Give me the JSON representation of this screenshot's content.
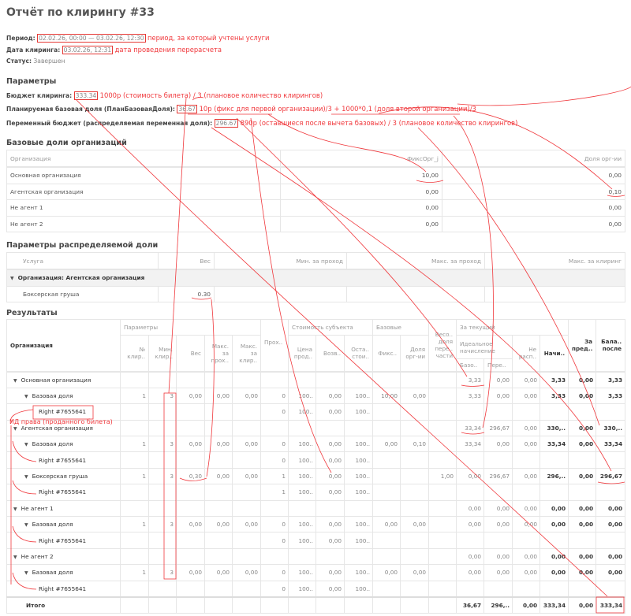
{
  "title": "Отчёт по клирингу #33",
  "info": {
    "period_label": "Период:",
    "period_value": "02.02.26, 00:00 — 03.02.26, 12:30",
    "period_note": "период, за который учтены услуги",
    "date_label": "Дата клиринга:",
    "date_value": "03.02.26, 12:31",
    "date_note": "дата проведения перерасчета",
    "status_label": "Статус:",
    "status_value": "Завершен"
  },
  "params": {
    "heading": "Параметры",
    "budget_label": "Бюджет клиринга:",
    "budget_value": "333.34",
    "budget_note": "1000р (стоимость билета) / 3 (плановое количество клирингов)",
    "base_label": "Планируемая базовая доля (ПланБазоваяДоля):",
    "base_value": "36.67",
    "base_note": "10р (фикс для первой организации)/3 + 1000*0,1 (доля второй организации)/3",
    "var_label": "Переменный бюджет (распределяемая переменная доля):",
    "var_value": "296.67",
    "var_note": "890р (оставшиеся после вычета базовых) / 3 (плановое количество клирингов)"
  },
  "base_shares": {
    "heading": "Базовые доли организаций",
    "columns": [
      "Организация",
      "ФиксОрг_j",
      "Доля орг-ии"
    ],
    "rows": [
      [
        "Основная организация",
        "10,00",
        "0,00"
      ],
      [
        "Агентская организация",
        "0,00",
        "0,10"
      ],
      [
        "Не агент 1",
        "0,00",
        "0,00"
      ],
      [
        "Не агент 2",
        "0,00",
        "0,00"
      ]
    ]
  },
  "dist_params": {
    "heading": "Параметры распределяемой доли",
    "columns": [
      "Услуга",
      "Вес",
      "Мин. за проход",
      "Макс. за проход",
      "Макс. за клиринг"
    ],
    "group_label": "Организация: Агентская организация",
    "rows": [
      [
        "Боксерская груша",
        "0.30",
        "",
        "",
        ""
      ]
    ]
  },
  "results": {
    "heading": "Результаты",
    "h_org": "Организация",
    "h_params": "Параметры",
    "h_cost": "Стоимость субъекта",
    "h_base": "Базовые",
    "h_current": "За текущий",
    "h_ideal": "Идеальное начисление",
    "cols": [
      "№ клир..",
      "Мин. клир..",
      "Вес",
      "Макс. за прох..",
      "Макс. за клир..",
      "Прох..",
      "Цена прод..",
      "Возв..",
      "Оста.. стои..",
      "Фикс..",
      "Доля орг-ии",
      "Весо.. доля пере.. части",
      "Базо..",
      "Пере..",
      "Не расп..",
      "Начи..",
      "За пред..",
      "Бала.. после"
    ],
    "rows": [
      {
        "label": "Основная организация",
        "level": 0,
        "cells": [
          "",
          "",
          "",
          "",
          "",
          "",
          "",
          "",
          "",
          "",
          "",
          "",
          "3,33",
          "0,00",
          "0,00",
          "3,33",
          "0,00",
          "3,33"
        ]
      },
      {
        "label": "Базовая доля",
        "level": 1,
        "cells": [
          "1",
          "3",
          "0,00",
          "0,00",
          "0,00",
          "0",
          "100..",
          "0,00",
          "100..",
          "10,00",
          "0,00",
          "",
          "3,33",
          "0,00",
          "0,00",
          "3,33",
          "0,00",
          "3,33"
        ]
      },
      {
        "label": "Right #7655641",
        "level": 2,
        "cells": [
          "",
          "",
          "",
          "",
          "",
          "0",
          "100..",
          "0,00",
          "100..",
          "",
          "",
          "",
          "",
          "",
          "",
          "",
          "",
          ""
        ]
      },
      {
        "label": "Агентская организация",
        "level": 0,
        "cells": [
          "",
          "",
          "",
          "",
          "",
          "",
          "",
          "",
          "",
          "",
          "",
          "",
          "33,34",
          "296,67",
          "0,00",
          "330,..",
          "0,00",
          "330,.."
        ]
      },
      {
        "label": "Базовая доля",
        "level": 1,
        "cells": [
          "1",
          "3",
          "0,00",
          "0,00",
          "0,00",
          "0",
          "100..",
          "0,00",
          "100..",
          "0,00",
          "0,10",
          "",
          "33,34",
          "0,00",
          "0,00",
          "33,34",
          "0,00",
          "33,34"
        ]
      },
      {
        "label": "Right #7655641",
        "level": 2,
        "cells": [
          "",
          "",
          "",
          "",
          "",
          "0",
          "100..",
          "0,00",
          "100..",
          "",
          "",
          "",
          "",
          "",
          "",
          "",
          "",
          ""
        ]
      },
      {
        "label": "Боксерская груша",
        "level": 1,
        "cells": [
          "1",
          "3",
          "0,30",
          "0,00",
          "0,00",
          "1",
          "100..",
          "0,00",
          "100..",
          "",
          "",
          "1,00",
          "0,00",
          "296,67",
          "0,00",
          "296,..",
          "0,00",
          "296,67"
        ]
      },
      {
        "label": "Right #7655641",
        "level": 2,
        "cells": [
          "",
          "",
          "",
          "",
          "",
          "1",
          "100..",
          "0,00",
          "100..",
          "",
          "",
          "",
          "",
          "",
          "",
          "",
          "",
          ""
        ]
      },
      {
        "label": "Не агент 1",
        "level": 0,
        "cells": [
          "",
          "",
          "",
          "",
          "",
          "",
          "",
          "",
          "",
          "",
          "",
          "",
          "0,00",
          "0,00",
          "0,00",
          "0,00",
          "0,00",
          "0,00"
        ]
      },
      {
        "label": "Базовая доля",
        "level": 1,
        "cells": [
          "1",
          "3",
          "0,00",
          "0,00",
          "0,00",
          "0",
          "100..",
          "0,00",
          "100..",
          "0,00",
          "0,00",
          "",
          "0,00",
          "0,00",
          "0,00",
          "0,00",
          "0,00",
          "0,00"
        ]
      },
      {
        "label": "Right #7655641",
        "level": 2,
        "cells": [
          "",
          "",
          "",
          "",
          "",
          "0",
          "100..",
          "0,00",
          "100..",
          "",
          "",
          "",
          "",
          "",
          "",
          "",
          "",
          ""
        ]
      },
      {
        "label": "Не агент 2",
        "level": 0,
        "cells": [
          "",
          "",
          "",
          "",
          "",
          "",
          "",
          "",
          "",
          "",
          "",
          "",
          "0,00",
          "0,00",
          "0,00",
          "0,00",
          "0,00",
          "0,00"
        ]
      },
      {
        "label": "Базовая доля",
        "level": 1,
        "cells": [
          "1",
          "3",
          "0,00",
          "0,00",
          "0,00",
          "0",
          "100..",
          "0,00",
          "100..",
          "0,00",
          "0,00",
          "",
          "0,00",
          "0,00",
          "0,00",
          "0,00",
          "0,00",
          "0,00"
        ]
      },
      {
        "label": "Right #7655641",
        "level": 2,
        "cells": [
          "",
          "",
          "",
          "",
          "",
          "0",
          "100..",
          "0,00",
          "100..",
          "",
          "",
          "",
          "",
          "",
          "",
          "",
          "",
          ""
        ]
      }
    ],
    "total": {
      "label": "Итого",
      "cells": [
        "",
        "",
        "",
        "",
        "",
        "",
        "",
        "",
        "",
        "",
        "",
        "",
        "36,67",
        "296,..",
        "0,00",
        "333,34",
        "0,00",
        "333,34"
      ]
    }
  },
  "annotations": {
    "right_id_note": "ИД права (проданного билета)",
    "color": "#f0383c"
  }
}
